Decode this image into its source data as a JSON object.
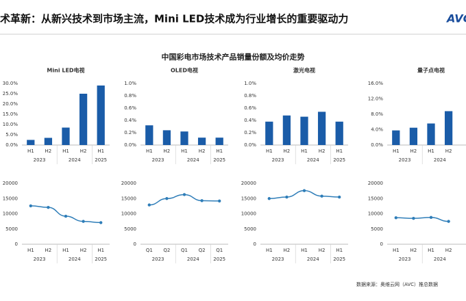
{
  "header": {
    "title": "术革新：从新兴技术到市场主流，Mini LED技术成为行业增长的重要驱动力",
    "logo": "AVC"
  },
  "subtitle": "中国彩电市场技术产品销量份额及均价走势",
  "footer": {
    "source": "数据来源：奥维云网（AVC）推总数据"
  },
  "chart_data": [
    {
      "type": "bar",
      "title": "Mini LED电视",
      "color": "#1a5ca8",
      "categories": [
        "H1",
        "H2",
        "H1",
        "H2",
        "H1"
      ],
      "groups": [
        "2023",
        "2024",
        "2025"
      ],
      "values": [
        2.5,
        3.5,
        8.5,
        25,
        29
      ],
      "ylim": [
        0,
        30
      ],
      "yticks": [
        {
          "value": 0,
          "label": "0.0%"
        },
        {
          "value": 5,
          "label": "5.0%"
        },
        {
          "value": 10,
          "label": "10.0%"
        },
        {
          "value": 15,
          "label": "15.0%"
        },
        {
          "value": 20,
          "label": "20.0%"
        },
        {
          "value": 25,
          "label": "25.0%"
        },
        {
          "value": 30,
          "label": "30.0%"
        }
      ]
    },
    {
      "type": "bar",
      "title": "OLED电视",
      "color": "#1a5ca8",
      "categories": [
        "H1",
        "H2",
        "H1",
        "H2",
        "H1"
      ],
      "groups": [
        "2023",
        "2024",
        "2025"
      ],
      "values": [
        0.32,
        0.24,
        0.22,
        0.12,
        0.12
      ],
      "ylim": [
        0,
        1
      ],
      "yticks": [
        {
          "value": 0,
          "label": "0.0%"
        },
        {
          "value": 0.2,
          "label": "0.2%"
        },
        {
          "value": 0.4,
          "label": "0.4%"
        },
        {
          "value": 0.6,
          "label": "0.6%"
        },
        {
          "value": 0.8,
          "label": "0.8%"
        },
        {
          "value": 1,
          "label": "1.0%"
        }
      ]
    },
    {
      "type": "bar",
      "title": "激光电视",
      "color": "#1a5ca8",
      "categories": [
        "H1",
        "H2",
        "H1",
        "H2",
        "H1"
      ],
      "groups": [
        "2023",
        "2024",
        "2025"
      ],
      "values": [
        0.38,
        0.48,
        0.46,
        0.54,
        0.38
      ],
      "ylim": [
        0,
        1
      ],
      "yticks": [
        {
          "value": 0,
          "label": "0.0%"
        },
        {
          "value": 0.2,
          "label": "0.2%"
        },
        {
          "value": 0.4,
          "label": "0.4%"
        },
        {
          "value": 0.6,
          "label": "0.6%"
        },
        {
          "value": 0.8,
          "label": "0.8%"
        },
        {
          "value": 1,
          "label": "1.0%"
        }
      ]
    },
    {
      "type": "bar",
      "title": "量子点电视",
      "color": "#1a5ca8",
      "categories": [
        "H1",
        "H2",
        "H1",
        "H2"
      ],
      "groups": [
        "2023",
        "2024"
      ],
      "values": [
        3.8,
        4.5,
        5.6,
        8.8
      ],
      "ylim": [
        0,
        16
      ],
      "yticks": [
        {
          "value": 0,
          "label": "0.0%"
        },
        {
          "value": 4,
          "label": "4.0%"
        },
        {
          "value": 8,
          "label": "8.0%"
        },
        {
          "value": 12,
          "label": "12.0%"
        },
        {
          "value": 16,
          "label": "16.0%"
        }
      ]
    },
    {
      "type": "line",
      "color": "#2e7db8",
      "categories": [
        "H1",
        "H2",
        "H1",
        "H2",
        "H1"
      ],
      "groups": [
        "2023",
        "2024",
        "2025"
      ],
      "values": [
        12600,
        12100,
        9200,
        7500,
        7100
      ],
      "ylim": [
        0,
        20000
      ],
      "yticks": [
        0,
        5000,
        10000,
        15000,
        20000
      ]
    },
    {
      "type": "line",
      "color": "#2e7db8",
      "categories": [
        "Q1",
        "Q2",
        "Q1",
        "Q2",
        "Q1"
      ],
      "groups": [
        "2023",
        "2024",
        "2025"
      ],
      "values": [
        12900,
        15000,
        16300,
        14300,
        14200
      ],
      "ylim": [
        0,
        20000
      ],
      "yticks": [
        0,
        5000,
        10000,
        15000,
        20000
      ]
    },
    {
      "type": "line",
      "color": "#2e7db8",
      "categories": [
        "H1",
        "H2",
        "H1",
        "H2",
        "H1"
      ],
      "groups": [
        "2023",
        "2024",
        "2025"
      ],
      "values": [
        15000,
        15500,
        17600,
        15800,
        15500
      ],
      "ylim": [
        0,
        20000
      ],
      "yticks": [
        0,
        5000,
        10000,
        15000,
        20000
      ]
    },
    {
      "type": "line",
      "color": "#2e7db8",
      "categories": [
        "H1",
        "H2",
        "H1",
        "H2"
      ],
      "groups": [
        "2023",
        "2024"
      ],
      "values": [
        8700,
        8500,
        8800,
        7500
      ],
      "ylim": [
        0,
        20000
      ],
      "yticks": [
        0,
        5000,
        10000,
        15000,
        20000
      ]
    }
  ]
}
